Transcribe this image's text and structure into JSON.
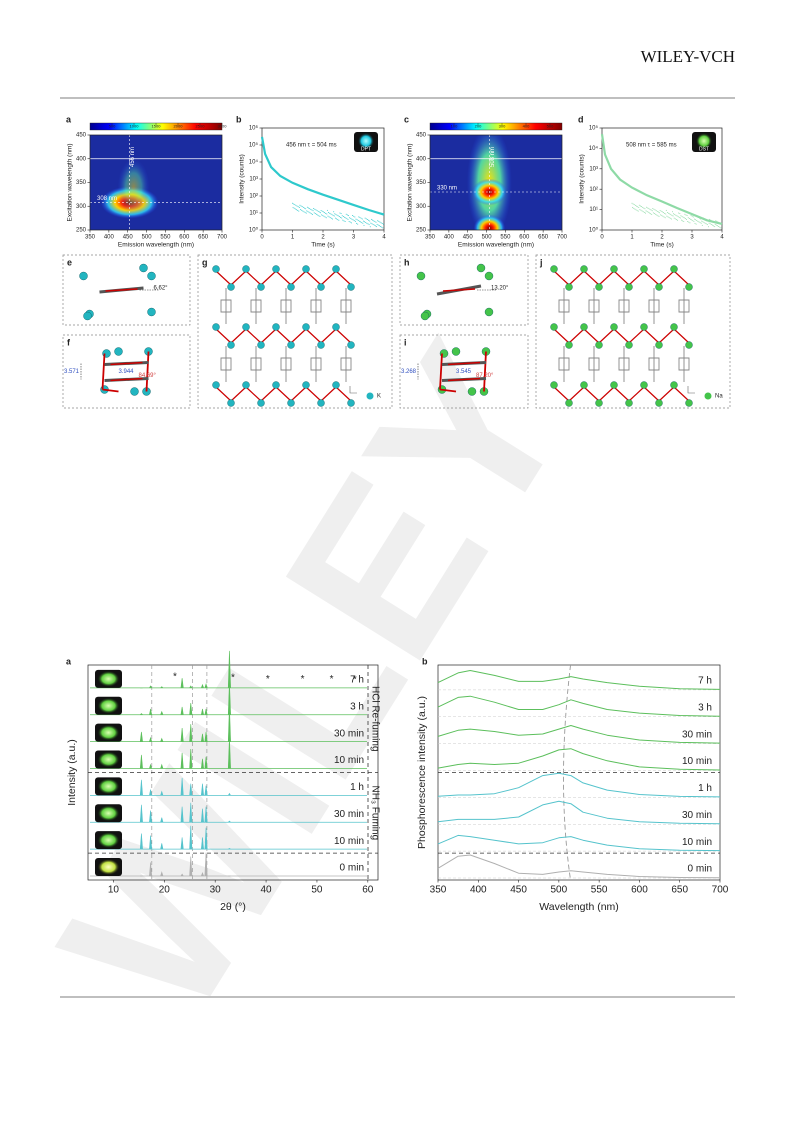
{
  "header": {
    "publisher": "WILEY-VCH"
  },
  "watermark": "WILEY",
  "structures": {
    "e": {
      "panel": "e",
      "angle": "6.62°"
    },
    "f": {
      "panel": "f",
      "distance": "3.571",
      "contact": "3.944",
      "angle": "84.69°"
    },
    "g": {
      "panel": "g",
      "ion": "K"
    },
    "h": {
      "panel": "h",
      "angle": "13.20°"
    },
    "i": {
      "panel": "i",
      "distance": "3.268",
      "contact": "3.545",
      "angle": "87.20°"
    },
    "j": {
      "panel": "j",
      "ion": "Na"
    }
  },
  "chart_data": [
    {
      "type": "heatmap",
      "panel": "a",
      "xlabel": "Emission wavelength (nm)",
      "ylabel": "Excitation wavelength (nm)",
      "xlim": [
        350,
        700
      ],
      "xticks": [
        350,
        400,
        450,
        500,
        550,
        600,
        650,
        700
      ],
      "ylim": [
        250,
        450
      ],
      "yticks": [
        250,
        300,
        350,
        400,
        450
      ],
      "clim": [
        0,
        3000
      ],
      "cticks": [
        500,
        1000,
        1500,
        2000,
        2500,
        3000
      ],
      "annotations": [
        "456 nm",
        "308 nm"
      ]
    },
    {
      "type": "line",
      "panel": "b",
      "xlabel": "Time (s)",
      "ylabel": "Intensity (counts)",
      "ylog": true,
      "xlim": [
        0,
        4
      ],
      "xticks": [
        0,
        1,
        2,
        3,
        4
      ],
      "ylim": [
        1,
        1000000
      ],
      "yticks": [
        {
          "value": 1,
          "label": "10⁰"
        },
        {
          "value": 10,
          "label": "10¹"
        },
        {
          "value": 100,
          "label": "10²"
        },
        {
          "value": 1000,
          "label": "10³"
        },
        {
          "value": 10000,
          "label": "10⁴"
        },
        {
          "value": 100000,
          "label": "10⁵"
        },
        {
          "value": 1000000,
          "label": "10⁶"
        }
      ],
      "x": [
        0,
        0.1,
        0.3,
        0.6,
        1,
        1.5,
        2,
        2.5,
        3,
        3.5,
        4
      ],
      "values": [
        300000,
        30000,
        5000,
        1500,
        600,
        250,
        120,
        60,
        30,
        15,
        8
      ],
      "color": "#2ec9cc",
      "annotation": "456 nm  τ = 504 ms",
      "sample": "DPT"
    },
    {
      "type": "heatmap",
      "panel": "c",
      "xlabel": "Emission wavelength (nm)",
      "ylabel": "Excitation wavelength (nm)",
      "xlim": [
        350,
        700
      ],
      "xticks": [
        350,
        400,
        450,
        500,
        550,
        600,
        650,
        700
      ],
      "ylim": [
        250,
        450
      ],
      "yticks": [
        250,
        300,
        350,
        400,
        450
      ],
      "clim": [
        0,
        550
      ],
      "cticks": [
        100,
        200,
        300,
        400,
        500
      ],
      "annotations": [
        "508 nm",
        "330 nm"
      ]
    },
    {
      "type": "line",
      "panel": "d",
      "xlabel": "Time (s)",
      "ylabel": "Intensity (counts)",
      "ylog": true,
      "xlim": [
        0,
        4
      ],
      "xticks": [
        0,
        1,
        2,
        3,
        4
      ],
      "ylim": [
        1,
        100000
      ],
      "yticks": [
        {
          "value": 1,
          "label": "10⁰"
        },
        {
          "value": 10,
          "label": "10¹"
        },
        {
          "value": 100,
          "label": "10²"
        },
        {
          "value": 1000,
          "label": "10³"
        },
        {
          "value": 10000,
          "label": "10⁴"
        },
        {
          "value": 100000,
          "label": "10⁵"
        }
      ],
      "x": [
        0,
        0.1,
        0.3,
        0.6,
        1,
        1.5,
        2,
        2.5,
        3,
        3.5,
        4
      ],
      "values": [
        50000,
        5000,
        1000,
        300,
        120,
        50,
        25,
        12,
        6,
        3,
        2
      ],
      "color": "#8edaa6",
      "annotation": "508 nm  τ = 585 ms",
      "sample": "DST"
    },
    {
      "type": "xrd",
      "panel": "a",
      "xlabel": "2θ (°)",
      "ylabel": "Intensity (a.u.)",
      "xlim": [
        5,
        62
      ],
      "xticks": [
        10,
        20,
        30,
        40,
        50,
        60
      ],
      "groups": [
        "HCl Re-fuming",
        "NH₃ Fuming"
      ],
      "marker": "*",
      "x": [
        15.5,
        17.3,
        19.5,
        23.5,
        25.2,
        27.5,
        28.2,
        32.8
      ],
      "series": [
        {
          "name": "7 h",
          "color": "#5cbf5c",
          "values": [
            0,
            5,
            3,
            25,
            5,
            8,
            10,
            95
          ]
        },
        {
          "name": "3 h",
          "color": "#5cbf5c",
          "values": [
            3,
            15,
            8,
            20,
            30,
            15,
            15,
            85
          ]
        },
        {
          "name": "30 min",
          "color": "#5cbf5c",
          "values": [
            25,
            10,
            8,
            35,
            45,
            20,
            25,
            90
          ]
        },
        {
          "name": "10 min",
          "color": "#5cbf5c",
          "values": [
            35,
            10,
            10,
            40,
            50,
            25,
            30,
            80
          ]
        },
        {
          "name": "1 h",
          "color": "#55c3cc",
          "values": [
            40,
            15,
            10,
            45,
            30,
            30,
            25,
            5
          ]
        },
        {
          "name": "30 min",
          "color": "#55c3cc",
          "values": [
            45,
            30,
            12,
            40,
            50,
            35,
            40,
            3
          ]
        },
        {
          "name": "10 min",
          "color": "#55c3cc",
          "values": [
            40,
            35,
            15,
            30,
            60,
            30,
            55,
            2
          ]
        },
        {
          "name": "0 min",
          "color": "#b0b0b0",
          "values": [
            0,
            35,
            10,
            5,
            50,
            8,
            60,
            0
          ]
        }
      ]
    },
    {
      "type": "spectra",
      "panel": "b",
      "xlabel": "Wavelength (nm)",
      "ylabel": "Phosphorescence intensity (a.u.)",
      "xlim": [
        350,
        700
      ],
      "xticks": [
        350,
        400,
        450,
        500,
        550,
        600,
        650,
        700
      ],
      "x": [
        350,
        375,
        390,
        420,
        450,
        480,
        500,
        515,
        530,
        560,
        600,
        650,
        700
      ],
      "series": [
        {
          "name": "7 h",
          "color": "#5cbf5c",
          "values": [
            0.3,
            0.7,
            0.8,
            0.6,
            0.35,
            0.35,
            0.45,
            0.55,
            0.45,
            0.3,
            0.15,
            0.05,
            0.02
          ]
        },
        {
          "name": "3 h",
          "color": "#5cbf5c",
          "values": [
            0.4,
            0.8,
            0.85,
            0.6,
            0.3,
            0.3,
            0.5,
            0.7,
            0.55,
            0.3,
            0.15,
            0.05,
            0.02
          ]
        },
        {
          "name": "30 min",
          "color": "#5cbf5c",
          "values": [
            0.3,
            0.55,
            0.6,
            0.5,
            0.35,
            0.4,
            0.6,
            0.75,
            0.6,
            0.35,
            0.15,
            0.05,
            0.02
          ]
        },
        {
          "name": "10 min",
          "color": "#5cbf5c",
          "values": [
            0.1,
            0.25,
            0.3,
            0.25,
            0.3,
            0.6,
            0.85,
            0.9,
            0.7,
            0.4,
            0.15,
            0.05,
            0.02
          ]
        },
        {
          "name": "1 h",
          "color": "#55c3cc",
          "values": [
            0.05,
            0.1,
            0.1,
            0.15,
            0.4,
            0.9,
            1,
            0.9,
            0.6,
            0.3,
            0.12,
            0.04,
            0.02
          ]
        },
        {
          "name": "30 min",
          "color": "#55c3cc",
          "values": [
            0.1,
            0.2,
            0.2,
            0.2,
            0.3,
            0.8,
            0.95,
            0.85,
            0.5,
            0.25,
            0.1,
            0.04,
            0.02
          ]
        },
        {
          "name": "10 min",
          "color": "#55c3cc",
          "values": [
            0.3,
            0.65,
            0.6,
            0.45,
            0.3,
            0.35,
            0.55,
            0.6,
            0.45,
            0.25,
            0.1,
            0.04,
            0.02
          ]
        },
        {
          "name": "0 min",
          "color": "#b0b0b0",
          "values": [
            0.4,
            0.9,
            0.95,
            0.6,
            0.2,
            0.15,
            0.25,
            0.3,
            0.25,
            0.15,
            0.06,
            0.02,
            0.01
          ]
        }
      ]
    }
  ]
}
